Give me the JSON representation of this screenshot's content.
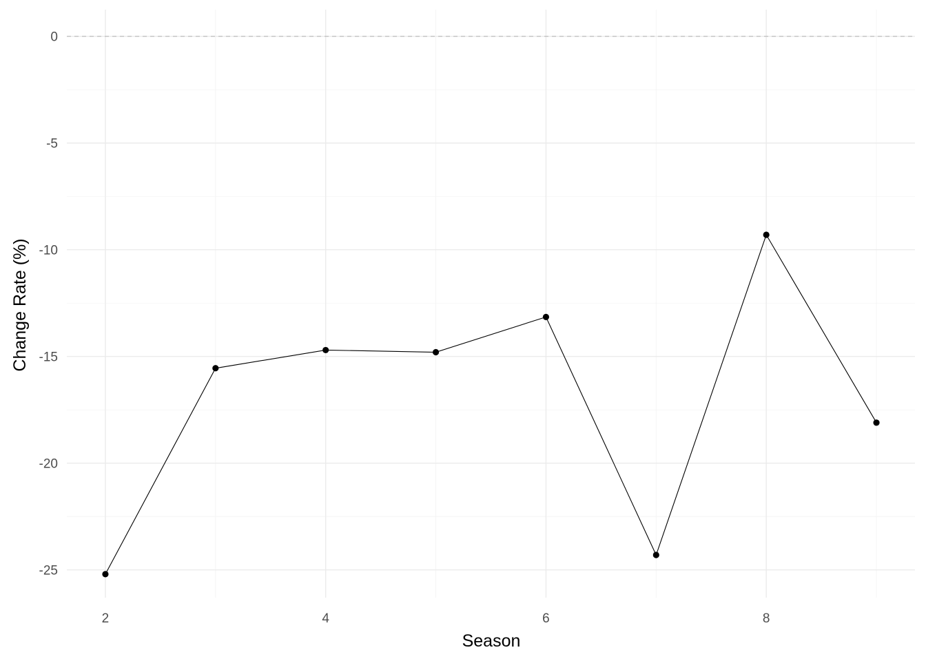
{
  "chart_data": {
    "type": "line",
    "title": "",
    "xlabel": "Season",
    "ylabel": "Change Rate (%)",
    "x": [
      2,
      3,
      4,
      5,
      6,
      7,
      8,
      9
    ],
    "y": [
      -25.2,
      -15.55,
      -14.7,
      -14.8,
      -13.15,
      -24.3,
      -9.3,
      -18.1
    ],
    "x_ticks": [
      2,
      4,
      6,
      8
    ],
    "y_ticks": [
      0,
      -5,
      -10,
      -15,
      -20,
      -25
    ],
    "xlim": [
      1.65,
      9.35
    ],
    "ylim": [
      -26.3,
      1.25
    ],
    "reference_line": {
      "y": 0,
      "style": "dashed",
      "color": "#bdbdbd"
    },
    "grid": true,
    "legend": "none",
    "colors": {
      "line": "#000000",
      "point": "#000000",
      "grid": "#ebebeb"
    }
  }
}
